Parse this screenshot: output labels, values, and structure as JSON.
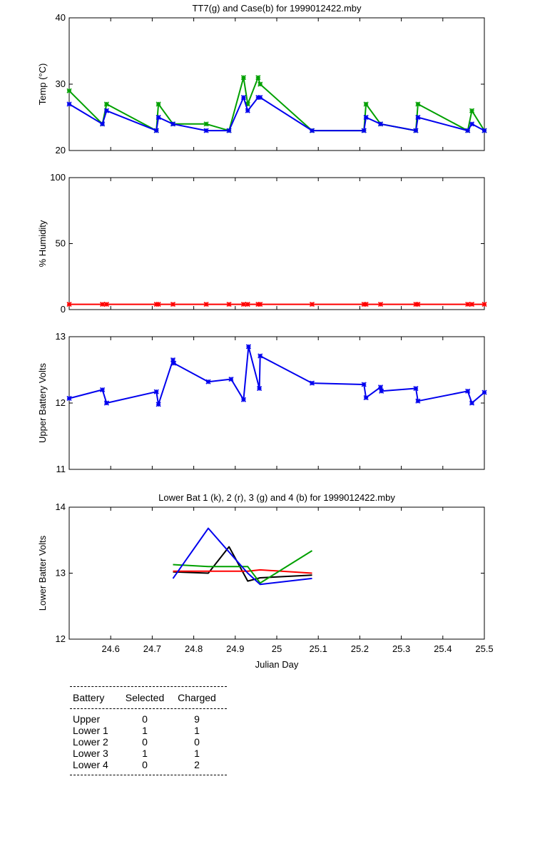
{
  "chart_data": [
    {
      "type": "line",
      "title": "TT7(g) and Case(b) for 1999012422.mby",
      "xlabel": "",
      "ylabel": "Temp  (°C)",
      "xlim": [
        24.5,
        25.5
      ],
      "ylim": [
        20,
        40
      ],
      "yticks": [
        "20",
        "30",
        "40"
      ],
      "grid": false,
      "series": [
        {
          "name": "TT7",
          "color": "#00a000",
          "markers": true,
          "x": [
            24.5,
            24.58,
            24.59,
            24.71,
            24.715,
            24.75,
            24.83,
            24.885,
            24.92,
            24.93,
            24.955,
            24.96,
            25.085,
            25.21,
            25.215,
            25.25,
            25.335,
            25.34,
            25.46,
            25.47,
            25.5
          ],
          "y": [
            29,
            24,
            27,
            23,
            27,
            24,
            24,
            23,
            31,
            27,
            31,
            30,
            23,
            23,
            27,
            24,
            23,
            27,
            23,
            26,
            23
          ]
        },
        {
          "name": "Case",
          "color": "#0000ee",
          "markers": true,
          "x": [
            24.5,
            24.58,
            24.59,
            24.71,
            24.715,
            24.75,
            24.83,
            24.885,
            24.92,
            24.93,
            24.955,
            24.96,
            25.085,
            25.21,
            25.215,
            25.25,
            25.335,
            25.34,
            25.46,
            25.47,
            25.5
          ],
          "y": [
            27,
            24,
            26,
            23,
            25,
            24,
            23,
            23,
            28,
            26,
            28,
            28,
            23,
            23,
            25,
            24,
            23,
            25,
            23,
            24,
            23
          ]
        }
      ]
    },
    {
      "type": "line",
      "title": "",
      "xlabel": "",
      "ylabel": "% Humidity",
      "xlim": [
        24.5,
        25.5
      ],
      "ylim": [
        0,
        100
      ],
      "yticks": [
        "0",
        "50",
        "100"
      ],
      "grid": false,
      "series": [
        {
          "name": "Humidity",
          "color": "#ff0000",
          "markers": true,
          "x": [
            24.5,
            24.58,
            24.59,
            24.71,
            24.715,
            24.75,
            24.83,
            24.885,
            24.92,
            24.93,
            24.955,
            24.96,
            25.085,
            25.21,
            25.215,
            25.25,
            25.335,
            25.34,
            25.46,
            25.47,
            25.5
          ],
          "y": [
            4,
            4,
            4,
            4,
            4,
            4,
            4,
            4,
            4,
            4,
            4,
            4,
            4,
            4,
            4,
            4,
            4,
            4,
            4,
            4,
            4
          ]
        }
      ]
    },
    {
      "type": "line",
      "title": "",
      "xlabel": "",
      "ylabel": "Upper Battery Volts",
      "xlim": [
        24.5,
        25.5
      ],
      "ylim": [
        11,
        13
      ],
      "yticks": [
        "11",
        "12",
        "13"
      ],
      "grid": false,
      "series": [
        {
          "name": "Upper",
          "color": "#0000ee",
          "markers": true,
          "x": [
            24.5,
            24.58,
            24.59,
            24.71,
            24.715,
            24.75,
            24.752,
            24.835,
            24.89,
            24.92,
            24.932,
            24.958,
            24.96,
            25.085,
            25.21,
            25.215,
            25.25,
            25.252,
            25.335,
            25.34,
            25.46,
            25.47,
            25.5
          ],
          "y": [
            12.07,
            12.2,
            12.0,
            12.17,
            11.98,
            12.65,
            12.6,
            12.32,
            12.36,
            12.05,
            12.85,
            12.22,
            12.71,
            12.3,
            12.28,
            12.08,
            12.24,
            12.18,
            12.22,
            12.03,
            12.18,
            12.0,
            12.16
          ]
        }
      ]
    },
    {
      "type": "line",
      "title": "Lower Bat 1 (k), 2 (r), 3 (g) and 4 (b) for 1999012422.mby",
      "xlabel": "Julian Day",
      "ylabel": "Lower Batter Volts",
      "xlim": [
        24.5,
        25.5
      ],
      "ylim": [
        12,
        14
      ],
      "yticks": [
        "12",
        "13",
        "14"
      ],
      "xticks": [
        "24.6",
        "24.7",
        "24.8",
        "24.9",
        "25",
        "25.1",
        "25.2",
        "25.3",
        "25.4",
        "25.5"
      ],
      "grid": false,
      "series": [
        {
          "name": "1 (k)",
          "color": "#000000",
          "markers": false,
          "x": [
            24.75,
            24.835,
            24.885,
            24.93,
            24.96,
            25.085
          ],
          "y": [
            13.02,
            13.0,
            13.4,
            12.88,
            12.93,
            12.97
          ]
        },
        {
          "name": "2 (r)",
          "color": "#ff0000",
          "markers": false,
          "x": [
            24.75,
            24.835,
            24.885,
            24.93,
            24.96,
            25.085
          ],
          "y": [
            13.03,
            13.03,
            13.03,
            13.03,
            13.05,
            13.0
          ]
        },
        {
          "name": "3 (g)",
          "color": "#00a000",
          "markers": false,
          "x": [
            24.75,
            24.835,
            24.885,
            24.93,
            24.96,
            25.085
          ],
          "y": [
            13.13,
            13.1,
            13.1,
            13.1,
            12.85,
            13.34
          ]
        },
        {
          "name": "4 (b)",
          "color": "#0000ee",
          "markers": false,
          "x": [
            24.75,
            24.835,
            24.885,
            24.93,
            24.96,
            25.085
          ],
          "y": [
            12.92,
            13.68,
            13.32,
            13.0,
            12.83,
            12.92
          ]
        }
      ]
    }
  ],
  "summary_table": {
    "headers": [
      "Battery",
      "Selected",
      "Charged"
    ],
    "rows": [
      [
        "Upper",
        "0",
        "9"
      ],
      [
        "Lower 1",
        "1",
        "1"
      ],
      [
        "Lower 2",
        "0",
        "0"
      ],
      [
        "Lower 3",
        "1",
        "1"
      ],
      [
        "Lower 4",
        "0",
        "2"
      ]
    ]
  }
}
